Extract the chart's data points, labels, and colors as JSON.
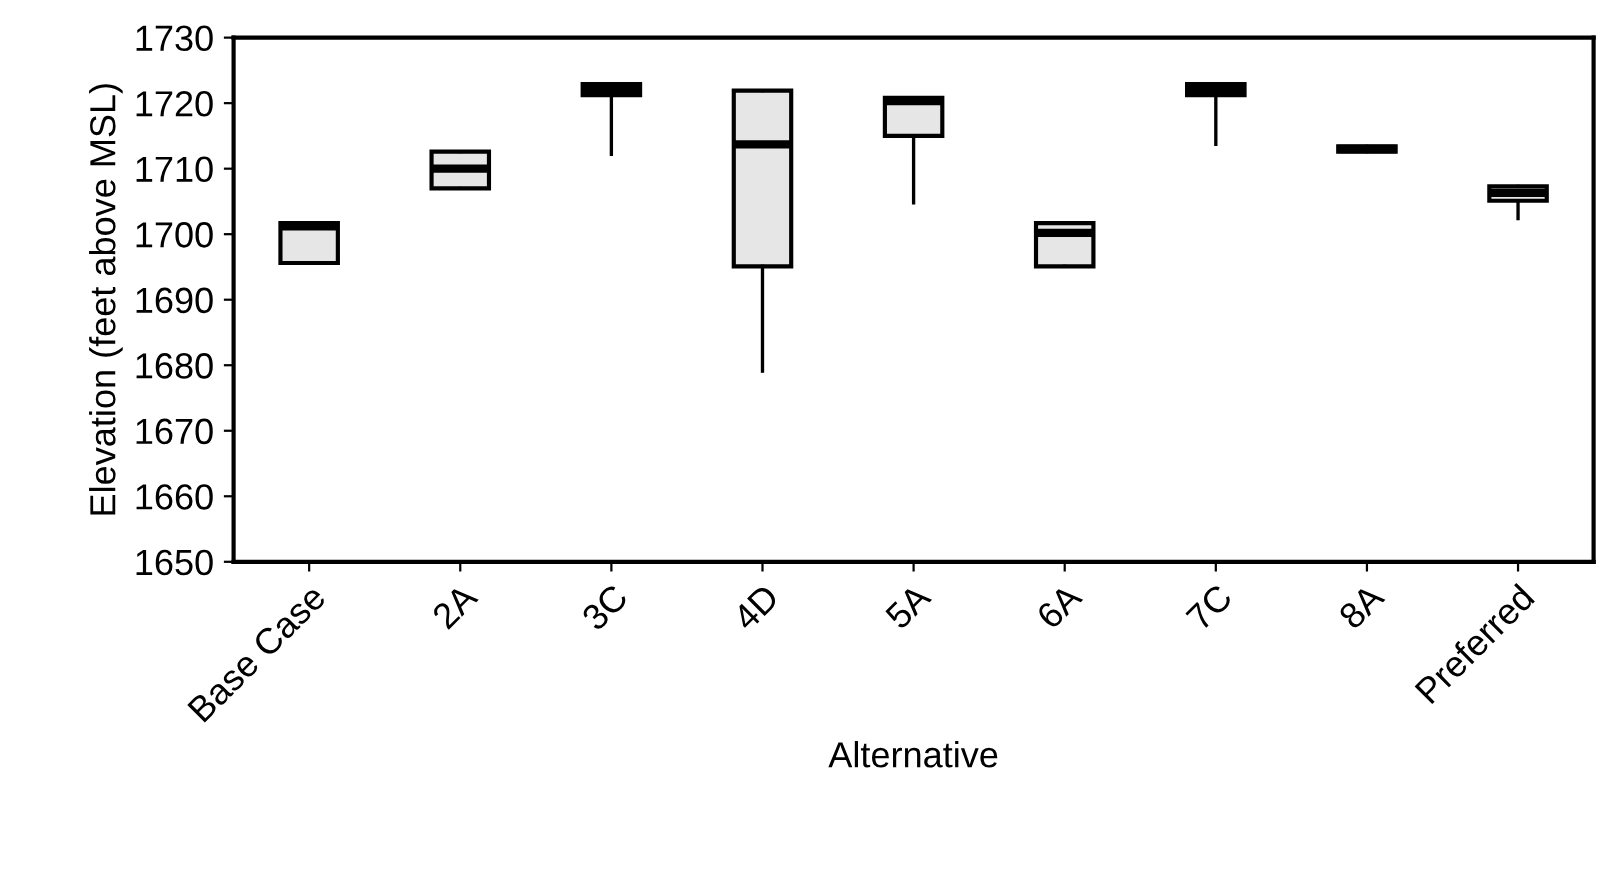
{
  "chart_data": {
    "type": "box",
    "xlabel": "Alternative",
    "ylabel": "Elevation (feet above MSL)",
    "categories": [
      "Base Case",
      "2A",
      "3C",
      "4D",
      "5A",
      "6A",
      "7C",
      "8A",
      "Preferred"
    ],
    "boxes": [
      {
        "low": 1695.6,
        "q1": 1695.6,
        "median": 1701.2,
        "q3": 1701.7,
        "high": 1701.7
      },
      {
        "low": 1707,
        "q1": 1707,
        "median": 1710,
        "q3": 1712.6,
        "high": 1712.6
      },
      {
        "low": 1712.2,
        "q1": 1721.2,
        "median": 1722,
        "q3": 1722.9,
        "high": 1722.9
      },
      {
        "low": 1679.1,
        "q1": 1695.1,
        "median": 1713.7,
        "q3": 1721.9,
        "high": 1721.9
      },
      {
        "low": 1704.8,
        "q1": 1715,
        "median": 1720.3,
        "q3": 1720.8,
        "high": 1720.8
      },
      {
        "low": 1695.1,
        "q1": 1695.1,
        "median": 1700.2,
        "q3": 1701.7,
        "high": 1701.7
      },
      {
        "low": 1713.7,
        "q1": 1721.2,
        "median": 1722,
        "q3": 1722.9,
        "high": 1722.9
      },
      {
        "low": 1712.6,
        "q1": 1712.6,
        "median": 1713,
        "q3": 1713.4,
        "high": 1713.4
      },
      {
        "low": 1702.4,
        "q1": 1705.1,
        "median": 1706.3,
        "q3": 1707.3,
        "high": 1707.3
      }
    ],
    "color": "#e6e6e6",
    "ylim": [
      1650,
      1730
    ],
    "yticks": [
      1650,
      1660,
      1670,
      1680,
      1690,
      1700,
      1710,
      1720,
      1730
    ],
    "grid": false
  }
}
